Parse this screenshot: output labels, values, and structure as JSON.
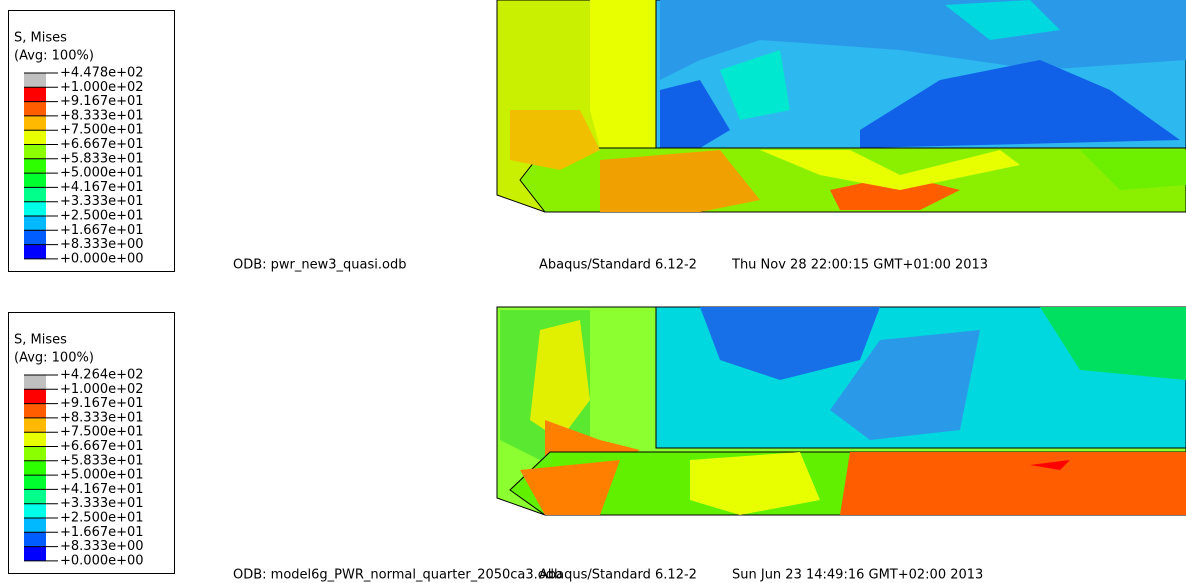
{
  "panels": [
    {
      "legend": {
        "title": "S, Mises",
        "subtitle": "(Avg: 100%)",
        "labels": [
          "+4.478e+02",
          "+1.000e+02",
          "+9.167e+01",
          "+8.333e+01",
          "+7.500e+01",
          "+6.667e+01",
          "+5.833e+01",
          "+5.000e+01",
          "+4.167e+01",
          "+3.333e+01",
          "+2.500e+01",
          "+1.667e+01",
          "+8.333e+00",
          "+0.000e+00"
        ]
      },
      "footer": {
        "odb": "ODB: pwr_new3_quasi.odb",
        "solver": "Abaqus/Standard 6.12-2",
        "date": "Thu Nov 28 22:00:15 GMT+01:00 2013"
      }
    },
    {
      "legend": {
        "title": "S, Mises",
        "subtitle": "(Avg: 100%)",
        "labels": [
          "+4.264e+02",
          "+1.000e+02",
          "+9.167e+01",
          "+8.333e+01",
          "+7.500e+01",
          "+6.667e+01",
          "+5.833e+01",
          "+5.000e+01",
          "+4.167e+01",
          "+3.333e+01",
          "+2.500e+01",
          "+1.667e+01",
          "+8.333e+00",
          "+0.000e+00"
        ]
      },
      "footer": {
        "odb": "ODB: model6g_PWR_normal_quarter_2050ca3.odb",
        "solver": "Abaqus/Standard 6.12-2",
        "date": "Sun Jun 23 14:49:16 GMT+02:00 2013"
      }
    }
  ]
}
